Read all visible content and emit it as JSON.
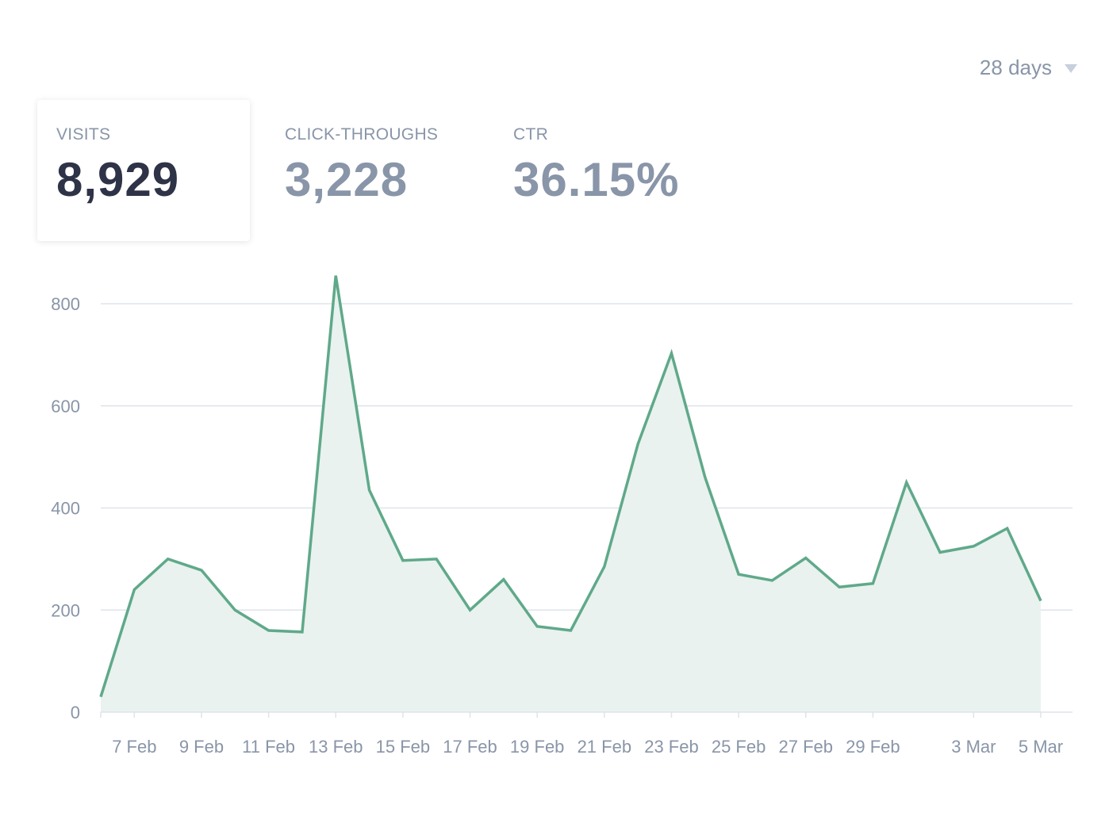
{
  "range_selector": {
    "label": "28 days",
    "icon": "caret-down-icon"
  },
  "metrics": [
    {
      "label": "VISITS",
      "value": "8,929"
    },
    {
      "label": "CLICK-THROUGHS",
      "value": "3,228"
    },
    {
      "label": "CTR",
      "value": "36.15%"
    }
  ],
  "colors": {
    "line": "#5fa98a",
    "area": "#e9f2ef",
    "grid": "#dfe3ea",
    "axis_text": "#8995a8",
    "active_value": "#2e3347"
  },
  "chart_data": {
    "type": "area",
    "series": [
      {
        "x": [
          "6 Feb",
          "7 Feb",
          "8 Feb",
          "9 Feb",
          "10 Feb",
          "11 Feb",
          "12 Feb",
          "13 Feb",
          "14 Feb",
          "15 Feb",
          "16 Feb",
          "17 Feb",
          "18 Feb",
          "19 Feb",
          "20 Feb",
          "21 Feb",
          "22 Feb",
          "23 Feb",
          "24 Feb",
          "25 Feb",
          "26 Feb",
          "27 Feb",
          "28 Feb",
          "29 Feb",
          "1 Mar",
          "2 Mar",
          "3 Mar",
          "4 Mar",
          "5 Mar"
        ],
        "values": [
          30,
          240,
          300,
          278,
          200,
          160,
          157,
          855,
          435,
          297,
          300,
          200,
          260,
          168,
          160,
          285,
          525,
          703,
          460,
          270,
          258,
          302,
          245,
          252,
          450,
          313,
          325,
          360,
          218
        ]
      }
    ],
    "xticks": [
      "7 Feb",
      "9 Feb",
      "11 Feb",
      "13 Feb",
      "15 Feb",
      "17 Feb",
      "19 Feb",
      "21 Feb",
      "23 Feb",
      "25 Feb",
      "27 Feb",
      "29 Feb",
      "3 Mar",
      "5 Mar"
    ],
    "yticks": [
      0,
      200,
      400,
      600,
      800
    ],
    "ylim": [
      0,
      860
    ],
    "grid": true,
    "legend": "none",
    "title": "",
    "xlabel": "",
    "ylabel": ""
  }
}
